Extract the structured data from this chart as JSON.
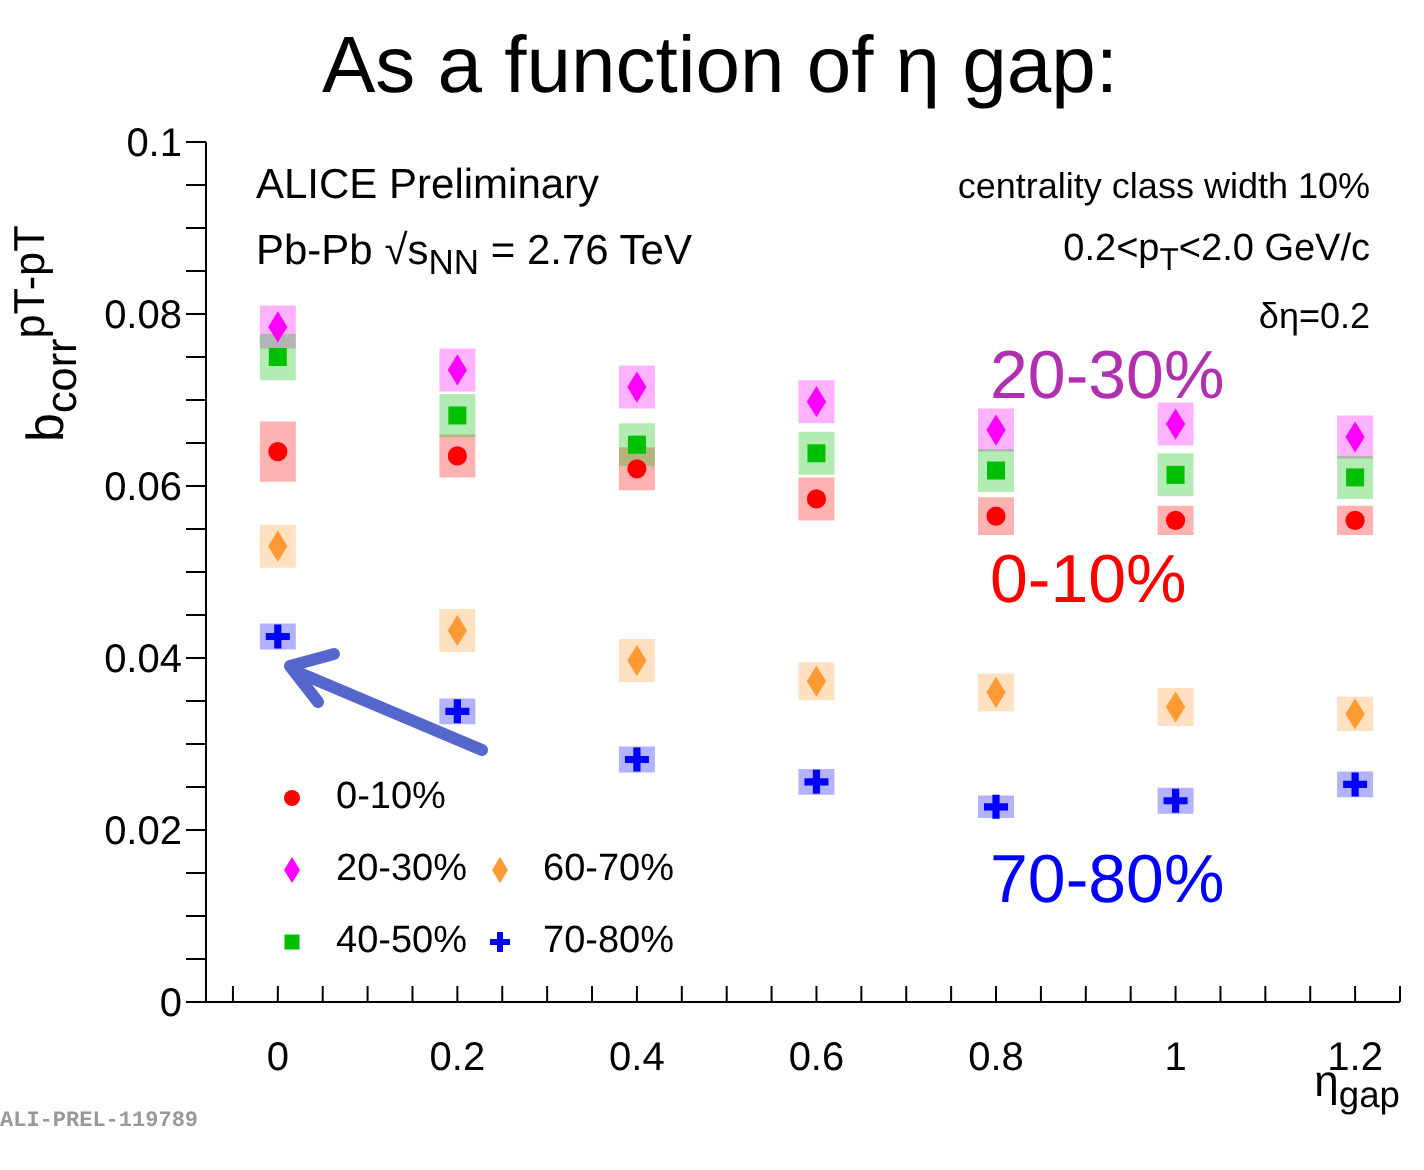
{
  "chart_data": {
    "type": "scatter",
    "title": "As a function of η gap:",
    "xlabel": "η$_{gap}$",
    "ylabel": "b$_{corr}$$^{pT-pT}$",
    "x": [
      0,
      0.2,
      0.4,
      0.6,
      0.8,
      1,
      1.2
    ],
    "series": [
      {
        "name": "0-10%",
        "color": "#ff0000",
        "marker": "circle",
        "values": [
          0.064,
          0.0635,
          0.062,
          0.0585,
          0.0565,
          0.056,
          0.056
        ],
        "errors": [
          0.0035,
          0.0025,
          0.0025,
          0.0025,
          0.0022,
          0.0017,
          0.0017
        ]
      },
      {
        "name": "20-30%",
        "color": "#ff00ff",
        "marker": "diamond",
        "values": [
          0.0785,
          0.0735,
          0.0715,
          0.0698,
          0.0665,
          0.0672,
          0.0657
        ],
        "errors": [
          0.0025,
          0.0025,
          0.0025,
          0.0025,
          0.0025,
          0.0025,
          0.0025
        ]
      },
      {
        "name": "40-50%",
        "color": "#00c000",
        "marker": "square",
        "values": [
          0.075,
          0.0682,
          0.0648,
          0.0638,
          0.0618,
          0.0613,
          0.061
        ],
        "errors": [
          0.0027,
          0.0025,
          0.0025,
          0.0025,
          0.0025,
          0.0025,
          0.0025
        ]
      },
      {
        "name": "60-70%",
        "color": "#ff9933",
        "marker": "diamond",
        "values": [
          0.053,
          0.0432,
          0.0397,
          0.0373,
          0.036,
          0.0343,
          0.0335
        ],
        "errors": [
          0.0025,
          0.0025,
          0.0025,
          0.0022,
          0.0022,
          0.0022,
          0.002
        ]
      },
      {
        "name": "70-80%",
        "color": "#0000ff",
        "marker": "cross",
        "values": [
          0.0425,
          0.0338,
          0.0282,
          0.0256,
          0.0227,
          0.0234,
          0.0253
        ],
        "errors": [
          0.0015,
          0.0015,
          0.0015,
          0.0015,
          0.0013,
          0.0015,
          0.0015
        ]
      }
    ],
    "xlim": [
      -0.08,
      1.25
    ],
    "xticks": [
      {
        "value": -0.05,
        "label": null
      },
      0,
      {
        "value": 0.05,
        "label": null
      },
      {
        "value": 0.1,
        "label": null
      },
      {
        "value": 0.15,
        "label": null
      },
      0.2,
      {
        "value": 0.25,
        "label": null
      },
      {
        "value": 0.3,
        "label": null
      },
      {
        "value": 0.35,
        "label": null
      },
      0.4,
      {
        "value": 0.45,
        "label": null
      },
      {
        "value": 0.5,
        "label": null
      },
      {
        "value": 0.55,
        "label": null
      },
      0.6,
      {
        "value": 0.65,
        "label": null
      },
      {
        "value": 0.7,
        "label": null
      },
      {
        "value": 0.75,
        "label": null
      },
      0.8,
      {
        "value": 0.85,
        "label": null
      },
      {
        "value": 0.9,
        "label": null
      },
      {
        "value": 0.95,
        "label": null
      },
      1,
      {
        "value": 1.05,
        "label": null
      },
      {
        "value": 1.1,
        "label": null
      },
      {
        "value": 1.15,
        "label": null
      },
      1.2,
      {
        "value": 1.25,
        "label": null
      }
    ],
    "ylim": [
      0,
      0.1
    ],
    "yticks": [
      0,
      {
        "value": 0.005,
        "label": null
      },
      {
        "value": 0.01,
        "label": null
      },
      {
        "value": 0.015,
        "label": null
      },
      0.02,
      {
        "value": 0.025,
        "label": null
      },
      {
        "value": 0.03,
        "label": null
      },
      {
        "value": 0.035,
        "label": null
      },
      0.04,
      {
        "value": 0.045,
        "label": null
      },
      {
        "value": 0.05,
        "label": null
      },
      {
        "value": 0.055,
        "label": null
      },
      0.06,
      {
        "value": 0.065,
        "label": null
      },
      {
        "value": 0.07,
        "label": null
      },
      {
        "value": 0.075,
        "label": null
      },
      0.08,
      {
        "value": 0.085,
        "label": null
      },
      {
        "value": 0.09,
        "label": null
      },
      {
        "value": 0.095,
        "label": null
      },
      0.1
    ],
    "legend": "bottom left",
    "annotations": [
      "ALICE Preliminary",
      "Pb-Pb √s$_{NN}$ = 2.76 TeV",
      "centrality class width 10%",
      "0.2<p$_{T}$<2.0 GeV/c",
      "δη=0.2",
      "20-30%",
      "0-10%",
      "70-80%",
      "ALI-PREL-119789"
    ]
  }
}
